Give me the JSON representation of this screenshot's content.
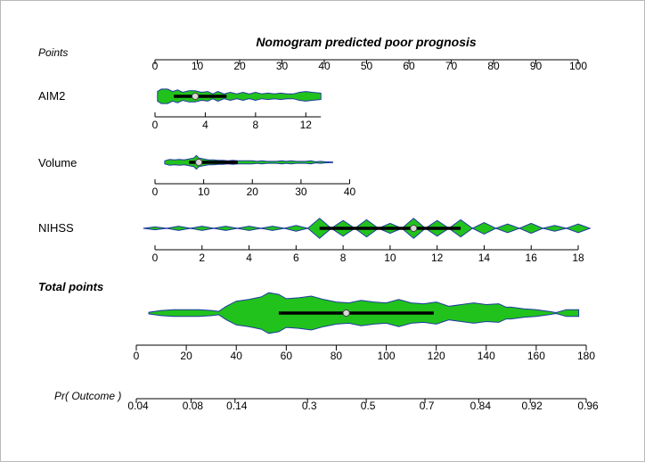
{
  "chart_data": {
    "type": "nomogram",
    "title": "Nomogram predicted poor prognosis",
    "violin_color": "#22c21c",
    "outline_color": "#1f3a9e",
    "points_scale": {
      "label": "Points",
      "range": [
        0,
        100
      ],
      "ticks": [
        "0",
        "10",
        "20",
        "30",
        "40",
        "50",
        "60",
        "70",
        "80",
        "90",
        "100"
      ]
    },
    "variables": [
      {
        "name": "AIM2",
        "range": [
          0,
          13.2
        ],
        "points_range": [
          0,
          39.2
        ],
        "ticks": [
          {
            "value": 0,
            "label": "0"
          },
          {
            "value": 4,
            "label": "4"
          },
          {
            "value": 8,
            "label": "8"
          },
          {
            "value": 12,
            "label": "12"
          }
        ],
        "distribution": {
          "min": 0.2,
          "max": 13.2,
          "q1": 1.5,
          "median": 3.2,
          "q3": 5.7,
          "density": [
            [
              0.2,
              6
            ],
            [
              0.5,
              9
            ],
            [
              1,
              9
            ],
            [
              1.4,
              6
            ],
            [
              1.8,
              8
            ],
            [
              2.2,
              5
            ],
            [
              2.7,
              7
            ],
            [
              3.2,
              7
            ],
            [
              3.7,
              5
            ],
            [
              4.2,
              6
            ],
            [
              4.6,
              3
            ],
            [
              5,
              6
            ],
            [
              5.5,
              3
            ],
            [
              6,
              5
            ],
            [
              6.5,
              3
            ],
            [
              7,
              5
            ],
            [
              7.5,
              3
            ],
            [
              8,
              5
            ],
            [
              8.5,
              3
            ],
            [
              9,
              4
            ],
            [
              9.5,
              3
            ],
            [
              10,
              4
            ],
            [
              10.5,
              3
            ],
            [
              11,
              3
            ],
            [
              11.5,
              5
            ],
            [
              12,
              6
            ],
            [
              12.5,
              5
            ],
            [
              13.2,
              4
            ]
          ]
        }
      },
      {
        "name": "Volume",
        "range": [
          0,
          40
        ],
        "points_range": [
          0,
          46
        ],
        "ticks": [
          {
            "value": 0,
            "label": "0"
          },
          {
            "value": 10,
            "label": "10"
          },
          {
            "value": 20,
            "label": "20"
          },
          {
            "value": 30,
            "label": "30"
          },
          {
            "value": 40,
            "label": "40"
          }
        ],
        "distribution": {
          "min": 2,
          "max": 36.5,
          "q1": 7,
          "median": 9,
          "q3": 17,
          "density": [
            [
              2,
              3
            ],
            [
              3,
              6
            ],
            [
              4,
              5
            ],
            [
              5,
              6
            ],
            [
              6,
              5
            ],
            [
              7,
              7
            ],
            [
              8,
              9
            ],
            [
              8.5,
              14
            ],
            [
              9,
              9
            ],
            [
              10,
              7
            ],
            [
              11,
              5
            ],
            [
              12,
              5
            ],
            [
              13,
              4
            ],
            [
              14,
              4
            ],
            [
              15,
              3
            ],
            [
              16,
              4
            ],
            [
              17,
              3
            ],
            [
              18,
              3
            ],
            [
              19,
              3
            ],
            [
              20,
              3
            ],
            [
              21,
              2
            ],
            [
              22,
              3
            ],
            [
              23,
              2
            ],
            [
              24,
              2
            ],
            [
              25,
              2
            ],
            [
              26,
              3
            ],
            [
              27,
              2
            ],
            [
              28,
              3
            ],
            [
              29,
              2
            ],
            [
              30,
              2
            ],
            [
              31,
              2
            ],
            [
              32,
              3
            ],
            [
              33,
              1
            ],
            [
              34,
              2
            ],
            [
              35,
              1
            ],
            [
              36.5,
              0.5
            ]
          ]
        }
      },
      {
        "name": "NIHSS",
        "range": [
          0,
          18
        ],
        "points_range": [
          0,
          100
        ],
        "ticks": [
          {
            "value": 0,
            "label": "0"
          },
          {
            "value": 2,
            "label": "2"
          },
          {
            "value": 4,
            "label": "4"
          },
          {
            "value": 6,
            "label": "6"
          },
          {
            "value": 8,
            "label": "8"
          },
          {
            "value": 10,
            "label": "10"
          },
          {
            "value": 12,
            "label": "12"
          },
          {
            "value": 14,
            "label": "14"
          },
          {
            "value": 16,
            "label": "16"
          },
          {
            "value": 18,
            "label": "18"
          }
        ],
        "distribution": {
          "min": 0,
          "max": 18,
          "q1": 7,
          "median": 11,
          "q3": 13,
          "discrete": [
            [
              0,
              2
            ],
            [
              1,
              3
            ],
            [
              2,
              3
            ],
            [
              3,
              3
            ],
            [
              4,
              3
            ],
            [
              5,
              3
            ],
            [
              6,
              4
            ],
            [
              7,
              14
            ],
            [
              8,
              11
            ],
            [
              9,
              12
            ],
            [
              10,
              7
            ],
            [
              11,
              14
            ],
            [
              12,
              11
            ],
            [
              13,
              12
            ],
            [
              14,
              8
            ],
            [
              15,
              6
            ],
            [
              16,
              7
            ],
            [
              17,
              4
            ],
            [
              18,
              6
            ]
          ]
        }
      }
    ],
    "total_points": {
      "label": "Total points",
      "range": [
        0,
        180
      ],
      "ticks": [
        "0",
        "20",
        "40",
        "60",
        "80",
        "100",
        "120",
        "140",
        "160",
        "180"
      ],
      "distribution": {
        "min": 5,
        "max": 177,
        "q1": 57,
        "median": 84,
        "q3": 119,
        "density": [
          [
            5,
            1
          ],
          [
            10,
            3
          ],
          [
            15,
            4
          ],
          [
            20,
            4
          ],
          [
            25,
            4
          ],
          [
            30,
            3
          ],
          [
            33,
            2
          ],
          [
            36,
            8
          ],
          [
            40,
            14
          ],
          [
            45,
            16
          ],
          [
            50,
            19
          ],
          [
            53,
            24
          ],
          [
            57,
            22
          ],
          [
            60,
            17
          ],
          [
            65,
            18
          ],
          [
            70,
            20
          ],
          [
            75,
            16
          ],
          [
            80,
            13
          ],
          [
            85,
            12
          ],
          [
            90,
            15
          ],
          [
            95,
            13
          ],
          [
            100,
            12
          ],
          [
            105,
            16
          ],
          [
            110,
            12
          ],
          [
            115,
            11
          ],
          [
            120,
            13
          ],
          [
            125,
            8
          ],
          [
            130,
            10
          ],
          [
            135,
            12
          ],
          [
            140,
            10
          ],
          [
            145,
            11
          ],
          [
            148,
            7
          ],
          [
            150,
            7
          ],
          [
            155,
            5
          ],
          [
            160,
            4
          ],
          [
            165,
            2
          ],
          [
            168,
            0.5
          ],
          [
            172,
            4
          ],
          [
            177,
            4
          ]
        ]
      }
    },
    "probability": {
      "label": "Pr( Outcome )",
      "ticks": [
        {
          "label": "0.04",
          "at": 0
        },
        {
          "label": "0.08",
          "at": 21.9
        },
        {
          "label": "0.14",
          "at": 39.5
        },
        {
          "label": "0.3",
          "at": 68.5
        },
        {
          "label": "0.5",
          "at": 92
        },
        {
          "label": "0.7",
          "at": 115.5
        },
        {
          "label": "0.84",
          "at": 137
        },
        {
          "label": "0.92",
          "at": 157.6
        },
        {
          "label": "0.96",
          "at": 180
        }
      ]
    }
  }
}
